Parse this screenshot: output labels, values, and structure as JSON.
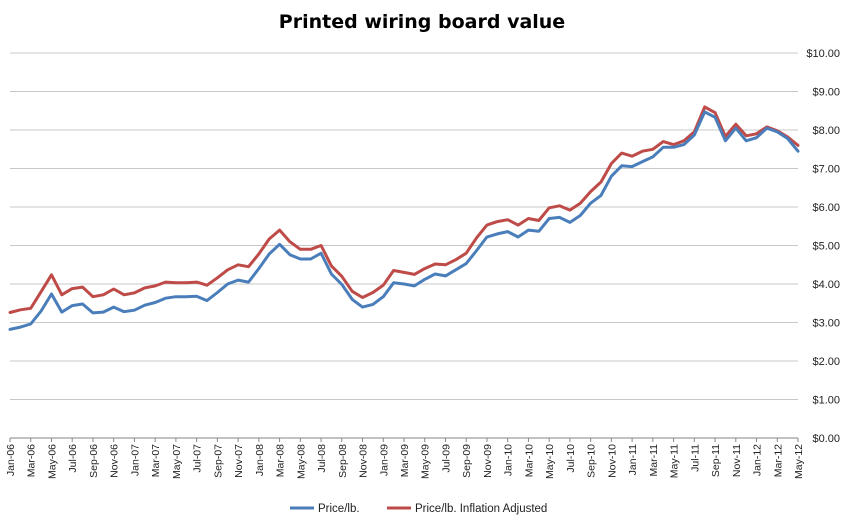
{
  "chart_data": {
    "type": "line",
    "title": "Printed wiring board value",
    "xlabel": "",
    "ylabel": "",
    "ylim": [
      0,
      10
    ],
    "y_ticks": [
      "$0.00",
      "$1.00",
      "$2.00",
      "$3.00",
      "$4.00",
      "$5.00",
      "$6.00",
      "$7.00",
      "$8.00",
      "$9.00",
      "$10.00"
    ],
    "y_axis_side": "right",
    "grid": true,
    "legend_position": "bottom",
    "categories": [
      "Jan-06",
      "Feb-06",
      "Mar-06",
      "Apr-06",
      "May-06",
      "Jun-06",
      "Jul-06",
      "Aug-06",
      "Sep-06",
      "Oct-06",
      "Nov-06",
      "Dec-06",
      "Jan-07",
      "Feb-07",
      "Mar-07",
      "Apr-07",
      "May-07",
      "Jun-07",
      "Jul-07",
      "Aug-07",
      "Sep-07",
      "Oct-07",
      "Nov-07",
      "Dec-07",
      "Jan-08",
      "Feb-08",
      "Mar-08",
      "Apr-08",
      "May-08",
      "Jun-08",
      "Jul-08",
      "Aug-08",
      "Sep-08",
      "Oct-08",
      "Nov-08",
      "Dec-08",
      "Jan-09",
      "Feb-09",
      "Mar-09",
      "Apr-09",
      "May-09",
      "Jun-09",
      "Jul-09",
      "Aug-09",
      "Sep-09",
      "Oct-09",
      "Nov-09",
      "Dec-09",
      "Jan-10",
      "Feb-10",
      "Mar-10",
      "Apr-10",
      "May-10",
      "Jun-10",
      "Jul-10",
      "Aug-10",
      "Sep-10",
      "Oct-10",
      "Nov-10",
      "Dec-10",
      "Jan-11",
      "Feb-11",
      "Mar-11",
      "Apr-11",
      "May-11",
      "Jun-11",
      "Jul-11",
      "Aug-11",
      "Sep-11",
      "Oct-11",
      "Nov-11",
      "Dec-11",
      "Jan-12",
      "Feb-12",
      "Mar-12",
      "Apr-12",
      "May-12"
    ],
    "x_tick_labels": [
      "Jan-06",
      "Mar-06",
      "May-06",
      "Jul-06",
      "Sep-06",
      "Nov-06",
      "Jan-07",
      "Mar-07",
      "May-07",
      "Jul-07",
      "Sep-07",
      "Nov-07",
      "Jan-08",
      "Mar-08",
      "May-08",
      "Jul-08",
      "Sep-08",
      "Nov-08",
      "Jan-09",
      "Mar-09",
      "May-09",
      "Jul-09",
      "Sep-09",
      "Nov-09",
      "Jan-10",
      "Mar-10",
      "May-10",
      "Jul-10",
      "Sep-10",
      "Nov-10",
      "Jan-11",
      "Mar-11",
      "May-11",
      "Jul-11",
      "Sep-11",
      "Nov-11",
      "Jan-12",
      "Mar-12",
      "May-12"
    ],
    "series": [
      {
        "name": "Price/lb.",
        "color": "#4a7ebb",
        "values": [
          2.82,
          2.88,
          2.96,
          3.3,
          3.74,
          3.27,
          3.44,
          3.48,
          3.25,
          3.27,
          3.4,
          3.28,
          3.32,
          3.45,
          3.52,
          3.63,
          3.67,
          3.67,
          3.68,
          3.57,
          3.78,
          4.0,
          4.1,
          4.05,
          4.4,
          4.78,
          5.03,
          4.76,
          4.65,
          4.65,
          4.8,
          4.26,
          3.99,
          3.6,
          3.4,
          3.47,
          3.67,
          4.03,
          4.0,
          3.95,
          4.12,
          4.26,
          4.21,
          4.37,
          4.53,
          4.87,
          5.22,
          5.3,
          5.36,
          5.22,
          5.4,
          5.37,
          5.7,
          5.73,
          5.6,
          5.78,
          6.1,
          6.3,
          6.8,
          7.07,
          7.05,
          7.18,
          7.3,
          7.55,
          7.55,
          7.62,
          7.87,
          8.47,
          8.33,
          7.72,
          8.05,
          7.72,
          7.8,
          8.05,
          7.95,
          7.78,
          7.45
        ]
      },
      {
        "name": "Price/lb. Inflation Adjusted",
        "color": "#be4b48",
        "values": [
          3.26,
          3.33,
          3.37,
          3.8,
          4.24,
          3.72,
          3.88,
          3.92,
          3.67,
          3.72,
          3.87,
          3.72,
          3.77,
          3.9,
          3.95,
          4.05,
          4.03,
          4.03,
          4.05,
          3.97,
          4.16,
          4.37,
          4.5,
          4.45,
          4.78,
          5.17,
          5.4,
          5.1,
          4.9,
          4.9,
          5.0,
          4.47,
          4.2,
          3.81,
          3.65,
          3.78,
          3.97,
          4.35,
          4.3,
          4.25,
          4.4,
          4.52,
          4.5,
          4.63,
          4.8,
          5.2,
          5.53,
          5.62,
          5.67,
          5.53,
          5.7,
          5.65,
          5.98,
          6.03,
          5.92,
          6.1,
          6.4,
          6.65,
          7.13,
          7.4,
          7.32,
          7.45,
          7.5,
          7.7,
          7.62,
          7.72,
          7.95,
          8.6,
          8.45,
          7.83,
          8.15,
          7.85,
          7.9,
          8.08,
          7.98,
          7.82,
          7.6
        ]
      }
    ]
  }
}
